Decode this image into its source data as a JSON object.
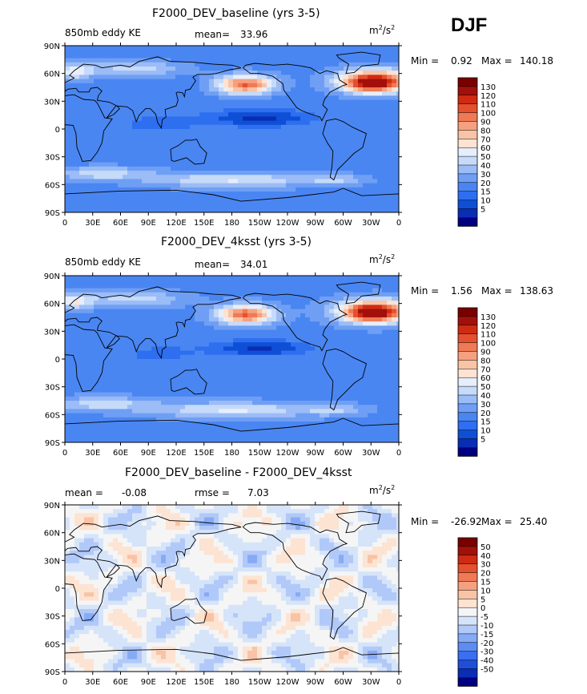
{
  "season": "DJF",
  "panels": [
    {
      "title": "F2000_DEV_baseline (yrs 3-5)",
      "left_label": "850mb eddy KE",
      "stat_label": "mean=",
      "stat_value": "33.96",
      "extra_label": "",
      "extra_value": "",
      "units_base": "m",
      "units_sup1": "2",
      "units_mid": "/s",
      "units_sup2": "2",
      "min_label": "Min =",
      "min_value": "0.92",
      "max_label": "Max =",
      "max_value": "140.18",
      "colorbar_labels": [
        "130",
        "120",
        "110",
        "100",
        "90",
        "80",
        "70",
        "60",
        "50",
        "40",
        "30",
        "20",
        "15",
        "10",
        "5"
      ]
    },
    {
      "title": "F2000_DEV_4ksst (yrs 3-5)",
      "left_label": "850mb eddy KE",
      "stat_label": "mean=",
      "stat_value": "34.01",
      "extra_label": "",
      "extra_value": "",
      "units_base": "m",
      "units_sup1": "2",
      "units_mid": "/s",
      "units_sup2": "2",
      "min_label": "Min =",
      "min_value": "1.56",
      "max_label": "Max =",
      "max_value": "138.63",
      "colorbar_labels": [
        "130",
        "120",
        "110",
        "100",
        "90",
        "80",
        "70",
        "60",
        "50",
        "40",
        "30",
        "20",
        "15",
        "10",
        "5"
      ]
    },
    {
      "title": "F2000_DEV_baseline - F2000_DEV_4ksst",
      "left_label": "mean =",
      "stat_label": "",
      "stat_value": "",
      "left_value": "-0.08",
      "extra_label": "rmse =",
      "extra_value": "7.03",
      "units_base": "m",
      "units_sup1": "2",
      "units_mid": "/s",
      "units_sup2": "2",
      "min_label": "Min =",
      "min_value": "-26.92",
      "max_label": "Max =",
      "max_value": "25.40",
      "colorbar_labels": [
        "50",
        "40",
        "30",
        "20",
        "15",
        "10",
        "5",
        "0",
        "-5",
        "-10",
        "-15",
        "-20",
        "-30",
        "-40",
        "-50"
      ]
    }
  ],
  "chart_data": [
    {
      "type": "heatmap",
      "title": "F2000_DEV_baseline (yrs 3-5)",
      "variable": "850mb eddy KE",
      "units": "m2/s2",
      "mean": 33.96,
      "min": 0.92,
      "max": 140.18,
      "x_ticks": [
        "0",
        "30E",
        "60E",
        "90E",
        "120E",
        "150E",
        "180",
        "150W",
        "120W",
        "90W",
        "60W",
        "30W",
        "0"
      ],
      "y_ticks": [
        "90N",
        "60N",
        "30N",
        "0",
        "30S",
        "60S",
        "90S"
      ],
      "levels": [
        5,
        10,
        15,
        20,
        30,
        40,
        50,
        60,
        70,
        80,
        90,
        100,
        110,
        120,
        130
      ]
    },
    {
      "type": "heatmap",
      "title": "F2000_DEV_4ksst (yrs 3-5)",
      "variable": "850mb eddy KE",
      "units": "m2/s2",
      "mean": 34.01,
      "min": 1.56,
      "max": 138.63,
      "x_ticks": [
        "0",
        "30E",
        "60E",
        "90E",
        "120E",
        "150E",
        "180",
        "150W",
        "120W",
        "90W",
        "60W",
        "30W",
        "0"
      ],
      "y_ticks": [
        "90N",
        "60N",
        "30N",
        "0",
        "30S",
        "60S",
        "90S"
      ],
      "levels": [
        5,
        10,
        15,
        20,
        30,
        40,
        50,
        60,
        70,
        80,
        90,
        100,
        110,
        120,
        130
      ]
    },
    {
      "type": "heatmap",
      "title": "F2000_DEV_baseline - F2000_DEV_4ksst",
      "units": "m2/s2",
      "mean": -0.08,
      "rmse": 7.03,
      "min": -26.92,
      "max": 25.4,
      "x_ticks": [
        "0",
        "30E",
        "60E",
        "90E",
        "120E",
        "150E",
        "180",
        "150W",
        "120W",
        "90W",
        "60W",
        "30W",
        "0"
      ],
      "y_ticks": [
        "90N",
        "60N",
        "30N",
        "0",
        "30S",
        "60S",
        "90S"
      ],
      "levels": [
        -50,
        -40,
        -30,
        -20,
        -15,
        -10,
        -5,
        0,
        5,
        10,
        15,
        20,
        30,
        40,
        50
      ]
    }
  ],
  "colors": {
    "seq": [
      "#000080",
      "#0a2db4",
      "#0f4fd6",
      "#2e6ff0",
      "#4a86f2",
      "#6f9ff4",
      "#9bbcf7",
      "#c6daf9",
      "#e6eefb",
      "#fde3d2",
      "#f9c3a6",
      "#f6a07f",
      "#f07a55",
      "#e5502f",
      "#cf2b13",
      "#a3100a",
      "#7a0000"
    ],
    "div": [
      "#000080",
      "#0a2db4",
      "#1f4fd8",
      "#3b6ef0",
      "#5c8df3",
      "#86aaf5",
      "#b1c9f8",
      "#d6e4fa",
      "#f5f5f5",
      "#fde3d2",
      "#f9c3a6",
      "#f6a07f",
      "#f07a55",
      "#e5502f",
      "#cf2b13",
      "#a3100a",
      "#7a0000"
    ]
  }
}
